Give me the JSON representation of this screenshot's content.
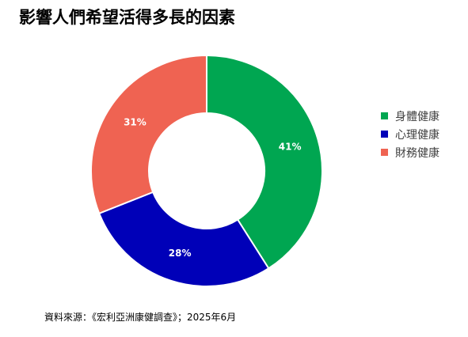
{
  "title": "影響人們希望活得多長的因素",
  "source": "資料來源：《宏利亞洲康健調查》；2025年6月",
  "chart_data": {
    "type": "pie",
    "donut": true,
    "legend_position": "right",
    "series": [
      {
        "name": "身體健康",
        "value": 41,
        "label": "41%",
        "color": "#00a651"
      },
      {
        "name": "心理健康",
        "value": 28,
        "label": "28%",
        "color": "#0000b8"
      },
      {
        "name": "財務健康",
        "value": 31,
        "label": "31%",
        "color": "#ef6352"
      }
    ]
  }
}
